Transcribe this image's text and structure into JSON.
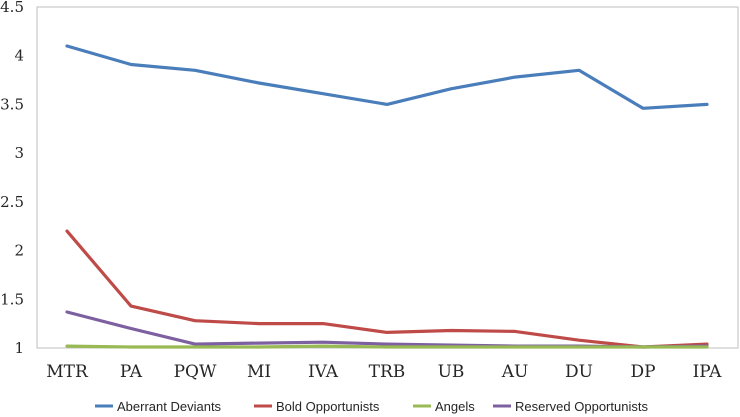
{
  "chart_data": {
    "type": "line",
    "title": "",
    "xlabel": "",
    "ylabel": "",
    "categories": [
      "MTR",
      "PA",
      "PQW",
      "MI",
      "IVA",
      "TRB",
      "UB",
      "AU",
      "DU",
      "DP",
      "IPA"
    ],
    "ylim": [
      1,
      4.5
    ],
    "yticks": [
      "1",
      "1.5",
      "2",
      "2.5",
      "3",
      "3.5",
      "4",
      "4.5"
    ],
    "grid": false,
    "legend_position": "bottom",
    "series": [
      {
        "name": "Aberrant Deviants",
        "color": "#4a7ebb",
        "values": [
          4.1,
          3.91,
          3.85,
          3.72,
          3.61,
          3.5,
          3.66,
          3.78,
          3.85,
          3.46,
          3.5
        ]
      },
      {
        "name": "Bold Opportunists",
        "color": "#be4b48",
        "values": [
          2.2,
          1.43,
          1.28,
          1.25,
          1.25,
          1.16,
          1.18,
          1.17,
          1.08,
          1.01,
          1.04
        ]
      },
      {
        "name": "Angels",
        "color": "#98b954",
        "values": [
          1.02,
          1.01,
          1.01,
          1.01,
          1.02,
          1.01,
          1.01,
          1.01,
          1.01,
          1.01,
          1.01
        ]
      },
      {
        "name": "Reserved Opportunists",
        "color": "#7d60a0",
        "values": [
          1.37,
          1.2,
          1.04,
          1.05,
          1.06,
          1.04,
          1.03,
          1.02,
          1.02,
          1.01,
          1.02
        ]
      }
    ]
  }
}
